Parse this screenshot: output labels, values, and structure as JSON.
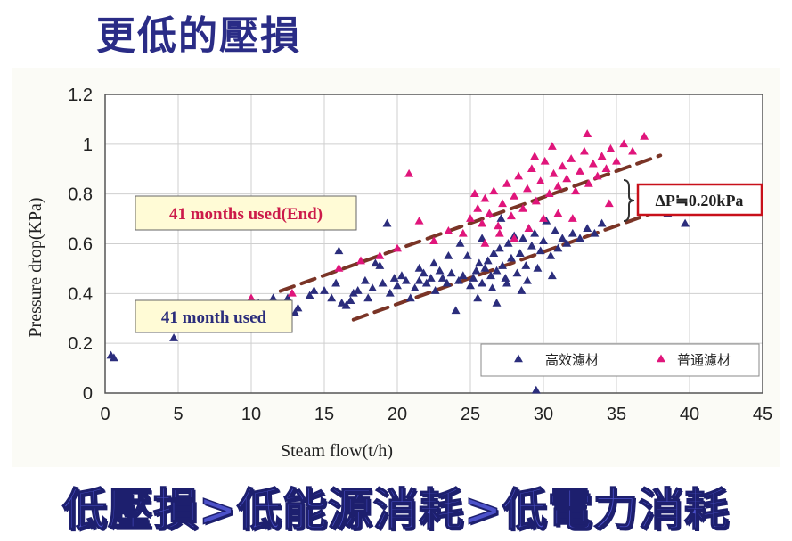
{
  "title": "更低的壓損",
  "footer": "低壓損>低能源消耗>低電力消耗",
  "colors": {
    "high_eff": "#2b2d7c",
    "normal": "#e0157b",
    "trend": "#7a3426",
    "anno_fill": "#fffbd6",
    "anno_red": "#cc1a4a",
    "anno_blue": "#2b2d7c",
    "delta_box": "#c8101a"
  },
  "chart_data": {
    "type": "scatter",
    "xlabel": "Steam flow(t/h)",
    "ylabel": "Pressure drop(KPa)",
    "xlim": [
      0,
      45
    ],
    "ylim": [
      0,
      1.2
    ],
    "x_ticks": [
      "0",
      "5",
      "10",
      "15",
      "20",
      "25",
      "30",
      "35",
      "40",
      "45"
    ],
    "y_ticks": [
      "0",
      "0.2",
      "0.4",
      "0.6",
      "0.8",
      "1",
      "1.2"
    ],
    "grid": true,
    "legend_position": "bottom-right",
    "series": [
      {
        "name": "高效濾材",
        "marker": "triangle",
        "points": [
          [
            0.4,
            0.15
          ],
          [
            0.6,
            0.14
          ],
          [
            4.7,
            0.22
          ],
          [
            10,
            0.35
          ],
          [
            10.5,
            0.36
          ],
          [
            11.5,
            0.38
          ],
          [
            12.5,
            0.38
          ],
          [
            13,
            0.32
          ],
          [
            13.2,
            0.34
          ],
          [
            14,
            0.39
          ],
          [
            14.3,
            0.41
          ],
          [
            15,
            0.41
          ],
          [
            15.5,
            0.38
          ],
          [
            15.8,
            0.44
          ],
          [
            16,
            0.57
          ],
          [
            16.2,
            0.36
          ],
          [
            16.5,
            0.35
          ],
          [
            16.8,
            0.37
          ],
          [
            17,
            0.4
          ],
          [
            17.3,
            0.41
          ],
          [
            17.8,
            0.45
          ],
          [
            18,
            0.38
          ],
          [
            18.3,
            0.42
          ],
          [
            18.5,
            0.52
          ],
          [
            18.8,
            0.51
          ],
          [
            19,
            0.44
          ],
          [
            19.3,
            0.68
          ],
          [
            19.5,
            0.4
          ],
          [
            19.8,
            0.46
          ],
          [
            20,
            0.43
          ],
          [
            20.3,
            0.47
          ],
          [
            20.6,
            0.45
          ],
          [
            20.9,
            0.38
          ],
          [
            21.2,
            0.42
          ],
          [
            21.5,
            0.45
          ],
          [
            21.8,
            0.48
          ],
          [
            22,
            0.44
          ],
          [
            22.3,
            0.46
          ],
          [
            22.6,
            0.41
          ],
          [
            22.9,
            0.49
          ],
          [
            23.1,
            0.46
          ],
          [
            23.4,
            0.44
          ],
          [
            23.7,
            0.48
          ],
          [
            24,
            0.33
          ],
          [
            24.2,
            0.45
          ],
          [
            24.5,
            0.47
          ],
          [
            24.8,
            0.55
          ],
          [
            25,
            0.43
          ],
          [
            25.2,
            0.46
          ],
          [
            25.4,
            0.49
          ],
          [
            25.6,
            0.52
          ],
          [
            25.8,
            0.44
          ],
          [
            26,
            0.5
          ],
          [
            26.2,
            0.53
          ],
          [
            26.4,
            0.47
          ],
          [
            26.6,
            0.56
          ],
          [
            26.8,
            0.49
          ],
          [
            27,
            0.58
          ],
          [
            27.2,
            0.51
          ],
          [
            27.4,
            0.46
          ],
          [
            27.6,
            0.6
          ],
          [
            27.8,
            0.54
          ],
          [
            28,
            0.63
          ],
          [
            28.2,
            0.48
          ],
          [
            28.4,
            0.56
          ],
          [
            28.6,
            0.62
          ],
          [
            28.8,
            0.51
          ],
          [
            29,
            0.66
          ],
          [
            29.2,
            0.59
          ],
          [
            29.4,
            0.64
          ],
          [
            29.6,
            0.5
          ],
          [
            29.8,
            0.57
          ],
          [
            30,
            0.61
          ],
          [
            30.2,
            0.69
          ],
          [
            30.5,
            0.55
          ],
          [
            30.8,
            0.65
          ],
          [
            31,
            0.58
          ],
          [
            31.3,
            0.62
          ],
          [
            31.6,
            0.6
          ],
          [
            32,
            0.64
          ],
          [
            32.5,
            0.62
          ],
          [
            33,
            0.66
          ],
          [
            33.5,
            0.64
          ],
          [
            34,
            0.68
          ],
          [
            26.5,
            0.42
          ],
          [
            27.5,
            0.44
          ],
          [
            28.5,
            0.41
          ],
          [
            29.5,
            0.01
          ],
          [
            25.5,
            0.38
          ],
          [
            26.8,
            0.36
          ],
          [
            23.5,
            0.55
          ],
          [
            22.5,
            0.52
          ],
          [
            21.5,
            0.5
          ],
          [
            24.3,
            0.6
          ],
          [
            25.8,
            0.62
          ],
          [
            27.1,
            0.7
          ],
          [
            39.7,
            0.68
          ],
          [
            38.5,
            0.72
          ],
          [
            30.6,
            0.47
          ],
          [
            28.9,
            0.45
          ]
        ]
      },
      {
        "name": "普通濾材",
        "marker": "triangle",
        "points": [
          [
            10,
            0.38
          ],
          [
            12.8,
            0.4
          ],
          [
            16,
            0.5
          ],
          [
            17.5,
            0.53
          ],
          [
            18.8,
            0.55
          ],
          [
            20,
            0.58
          ],
          [
            20.8,
            0.88
          ],
          [
            21.5,
            0.69
          ],
          [
            22.5,
            0.61
          ],
          [
            23.5,
            0.65
          ],
          [
            24.5,
            0.64
          ],
          [
            25,
            0.7
          ],
          [
            25.5,
            0.74
          ],
          [
            25.8,
            0.68
          ],
          [
            26,
            0.78
          ],
          [
            26.3,
            0.72
          ],
          [
            26.6,
            0.81
          ],
          [
            26.9,
            0.67
          ],
          [
            27.2,
            0.76
          ],
          [
            27.5,
            0.84
          ],
          [
            27.8,
            0.71
          ],
          [
            28,
            0.79
          ],
          [
            28.3,
            0.87
          ],
          [
            28.6,
            0.74
          ],
          [
            28.9,
            0.82
          ],
          [
            29.2,
            0.9
          ],
          [
            29.5,
            0.77
          ],
          [
            29.8,
            0.85
          ],
          [
            30.1,
            0.93
          ],
          [
            30.4,
            0.8
          ],
          [
            30.7,
            0.88
          ],
          [
            31,
            0.83
          ],
          [
            31.3,
            0.91
          ],
          [
            31.6,
            0.86
          ],
          [
            31.9,
            0.94
          ],
          [
            32.2,
            0.81
          ],
          [
            32.5,
            0.89
          ],
          [
            32.8,
            0.97
          ],
          [
            33.1,
            0.84
          ],
          [
            33.4,
            0.92
          ],
          [
            33.7,
            0.87
          ],
          [
            34,
            0.95
          ],
          [
            34.3,
            0.9
          ],
          [
            34.6,
            0.98
          ],
          [
            35,
            0.93
          ],
          [
            35.5,
            1.0
          ],
          [
            36.1,
            0.97
          ],
          [
            36.9,
            1.03
          ],
          [
            34.5,
            0.76
          ],
          [
            33,
            1.04
          ],
          [
            32,
            0.7
          ],
          [
            31,
            0.72
          ],
          [
            30,
            0.7
          ],
          [
            29,
            0.66
          ],
          [
            28,
            0.62
          ],
          [
            27,
            0.64
          ],
          [
            26,
            0.6
          ],
          [
            29.4,
            0.95
          ],
          [
            30.6,
            0.99
          ],
          [
            25.3,
            0.8
          ]
        ]
      }
    ],
    "annotations": [
      {
        "text": "41 months used(End)"
      },
      {
        "text": "41 month used"
      },
      {
        "text": "ΔP≒0.20kPa"
      }
    ]
  }
}
